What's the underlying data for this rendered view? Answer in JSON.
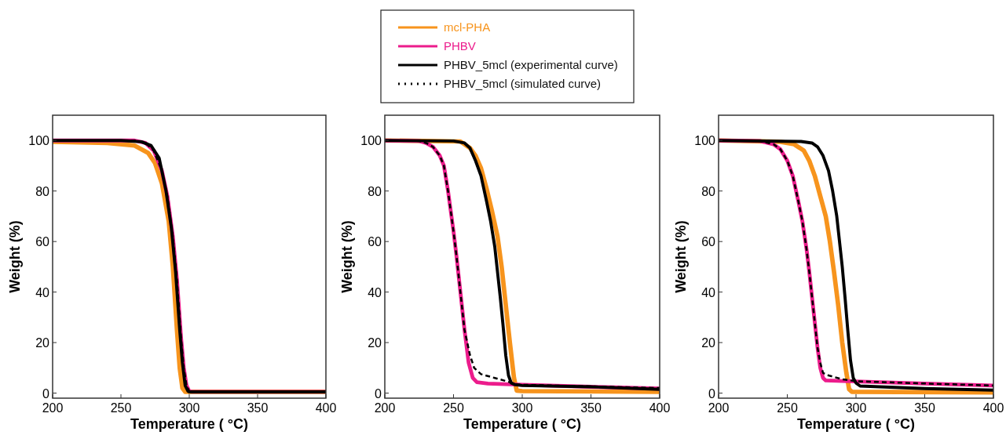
{
  "chart_data": [
    {
      "type": "line",
      "xlabel": "Temperature ( °C)",
      "ylabel": "Weight (%)",
      "xlim": [
        200,
        400
      ],
      "ylim": [
        -2,
        110
      ],
      "xticks": [
        200,
        250,
        300,
        350,
        400
      ],
      "yticks": [
        0,
        20,
        40,
        60,
        80,
        100
      ],
      "grid": false,
      "legend": false,
      "marker": "none",
      "series": [
        {
          "color": "#f7941d",
          "line_style": "solid",
          "x": [
            200,
            240,
            260,
            270,
            275,
            280,
            285,
            288,
            291,
            293,
            295,
            297,
            300,
            400
          ],
          "values": [
            99.5,
            99,
            98,
            95,
            91,
            83,
            68,
            50,
            25,
            10,
            2,
            0.5,
            0.5,
            0.5
          ]
        },
        {
          "color": "#ec1c8c",
          "line_style": "solid",
          "x": [
            200,
            260,
            268,
            274,
            280,
            284,
            288,
            291,
            294,
            296,
            298,
            300,
            302,
            400
          ],
          "values": [
            100,
            100,
            99,
            96,
            88,
            78,
            62,
            45,
            22,
            10,
            3,
            0.8,
            0.5,
            0.5
          ]
        },
        {
          "color": "#000000",
          "line_style": "solid",
          "x": [
            200,
            250,
            265,
            272,
            278,
            283,
            287,
            290,
            293,
            295,
            297,
            299,
            300,
            400
          ],
          "values": [
            100,
            100,
            99.5,
            98,
            93,
            80,
            65,
            48,
            25,
            12,
            3,
            0.8,
            0.5,
            0.5
          ]
        },
        {
          "color": "#000000",
          "line_style": "dashed",
          "x": [
            200,
            260,
            268,
            274,
            280,
            284,
            288,
            291,
            294,
            296,
            298,
            300,
            302,
            400
          ],
          "values": [
            100,
            100,
            99,
            96,
            88,
            78,
            62,
            45,
            22,
            10,
            3,
            0.8,
            0.5,
            0.5
          ]
        }
      ]
    },
    {
      "type": "line",
      "xlabel": "Temperature ( °C)",
      "ylabel": "Weight (%)",
      "xlim": [
        200,
        400
      ],
      "ylim": [
        -2,
        110
      ],
      "xticks": [
        200,
        250,
        300,
        350,
        400
      ],
      "yticks": [
        0,
        20,
        40,
        60,
        80,
        100
      ],
      "grid": false,
      "legend": "top",
      "marker": "none",
      "series": [
        {
          "name": "mcl-PHA",
          "color": "#f7941d",
          "line_style": "solid",
          "x": [
            200,
            255,
            262,
            266,
            270,
            274,
            278,
            282,
            285,
            288,
            291,
            294,
            296,
            300,
            400
          ],
          "values": [
            100,
            99.6,
            97,
            94,
            89,
            81,
            72,
            62,
            50,
            35,
            20,
            6,
            1,
            0.8,
            0.5
          ]
        },
        {
          "name": "PHBV",
          "color": "#ec1c8c",
          "line_style": "solid",
          "x": [
            200,
            225,
            230,
            235,
            240,
            243,
            246,
            248,
            250,
            252,
            254,
            256,
            258,
            261,
            264,
            267,
            275,
            300,
            350,
            400
          ],
          "values": [
            100,
            99.8,
            99,
            97.5,
            94,
            90,
            80,
            72,
            64,
            55,
            45,
            35,
            25,
            12,
            6,
            4.3,
            3.8,
            3.3,
            2.5,
            1.8
          ]
        },
        {
          "name": "PHBV_5mcl (experimental curve)",
          "color": "#000000",
          "line_style": "solid",
          "x": [
            200,
            250,
            258,
            262,
            266,
            270,
            274,
            277,
            280,
            282,
            284,
            286,
            288,
            290,
            292,
            295,
            300,
            350,
            400
          ],
          "values": [
            100,
            99.8,
            99,
            97,
            92,
            86,
            76,
            68,
            58,
            48,
            38,
            27,
            15,
            7,
            4,
            3.3,
            3,
            2.5,
            1.5
          ]
        },
        {
          "name": "PHBV_5mcl (simulated curve)",
          "color": "#000000",
          "line_style": "dashed",
          "x": [
            200,
            225,
            230,
            235,
            240,
            243,
            246,
            248,
            250,
            252,
            254,
            256,
            258,
            262,
            265,
            270,
            280,
            290,
            295,
            300,
            400
          ],
          "values": [
            100,
            99.8,
            99,
            97.5,
            94,
            90,
            80,
            72,
            64,
            55,
            45,
            35,
            25,
            15,
            10,
            7.5,
            6,
            4.5,
            3.5,
            3.3,
            2
          ]
        }
      ]
    },
    {
      "type": "line",
      "xlabel": "Temperature ( °C)",
      "ylabel": "Weight (%)",
      "xlim": [
        200,
        400
      ],
      "ylim": [
        -2,
        110
      ],
      "xticks": [
        200,
        250,
        300,
        350,
        400
      ],
      "yticks": [
        0,
        20,
        40,
        60,
        80,
        100
      ],
      "grid": false,
      "legend": false,
      "marker": "none",
      "series": [
        {
          "color": "#f7941d",
          "line_style": "solid",
          "x": [
            200,
            245,
            255,
            262,
            266,
            270,
            274,
            278,
            281,
            284,
            287,
            290,
            293,
            295,
            297,
            400
          ],
          "values": [
            100,
            99.5,
            98.5,
            96,
            92,
            86,
            78,
            70,
            60,
            48,
            35,
            20,
            8,
            1.5,
            0.5,
            0.3
          ]
        },
        {
          "color": "#ec1c8c",
          "line_style": "solid",
          "x": [
            200,
            230,
            240,
            245,
            250,
            254,
            258,
            261,
            264,
            266,
            268,
            270,
            272,
            274,
            276,
            278,
            290,
            350,
            400
          ],
          "values": [
            100,
            99.8,
            98.5,
            96.5,
            92,
            86,
            76,
            68,
            57,
            48,
            38,
            28,
            18,
            10,
            6,
            5,
            4.8,
            3.8,
            3
          ]
        },
        {
          "color": "#000000",
          "line_style": "solid",
          "x": [
            200,
            260,
            268,
            272,
            276,
            280,
            283,
            286,
            288,
            290,
            292,
            294,
            296,
            298,
            300,
            303,
            350,
            400
          ],
          "values": [
            100,
            99.6,
            99,
            97.5,
            94,
            88,
            80,
            70,
            60,
            50,
            38,
            25,
            13,
            6,
            4,
            2.8,
            1.8,
            1.2
          ]
        },
        {
          "color": "#000000",
          "line_style": "dashed",
          "x": [
            200,
            230,
            240,
            245,
            250,
            254,
            258,
            261,
            264,
            266,
            268,
            270,
            272,
            274,
            276,
            280,
            290,
            300,
            350,
            400
          ],
          "values": [
            100,
            99.8,
            98.5,
            96.5,
            92,
            86,
            76,
            68,
            57,
            48,
            38,
            28,
            18,
            12,
            8,
            7,
            5.5,
            4.7,
            3.8,
            3
          ]
        }
      ]
    }
  ]
}
